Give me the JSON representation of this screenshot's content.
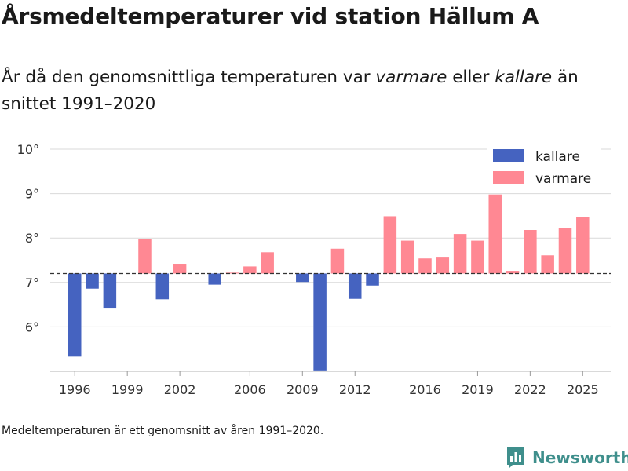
{
  "header": {
    "title": "Årsmedeltemperaturer vid station Hällum A",
    "subtitle_part1": "År då den genomsnittliga temperaturen var ",
    "subtitle_em1": "varmare",
    "subtitle_part2": " eller ",
    "subtitle_em2": "kallare",
    "subtitle_part3": " än snittet 1991–2020"
  },
  "footer": {
    "note": "Medeltemperaturen är ett genomsnitt av åren 1991–2020.",
    "brand": "Newsworthy"
  },
  "colors": {
    "kallare": "#4563c0",
    "varmare": "#ff8893",
    "grid": "#d9d9d9",
    "reference": "#333333",
    "brand": "#3f8f8c"
  },
  "chart_data": {
    "type": "bar",
    "title": "Årsmedeltemperaturer vid station Hällum A",
    "baseline": 7.2,
    "baseline_label": "snittet 1991–2020",
    "ylim": [
      5.0,
      10.3
    ],
    "yticks": [
      6,
      7,
      8,
      9,
      10
    ],
    "ytick_suffix": "°",
    "xlim": [
      1994.6,
      2026.6
    ],
    "xticks": [
      1996,
      1999,
      2002,
      2006,
      2009,
      2012,
      2016,
      2019,
      2022,
      2025
    ],
    "legend": {
      "position": "top-right",
      "entries": [
        {
          "key": "kallare",
          "label": "kallare"
        },
        {
          "key": "varmare",
          "label": "varmare"
        }
      ]
    },
    "series": [
      {
        "year": 1996,
        "value": 5.33
      },
      {
        "year": 1997,
        "value": 6.86
      },
      {
        "year": 1998,
        "value": 6.43
      },
      {
        "year": 2000,
        "value": 7.98
      },
      {
        "year": 2001,
        "value": 6.62
      },
      {
        "year": 2002,
        "value": 7.42
      },
      {
        "year": 2004,
        "value": 6.95
      },
      {
        "year": 2005,
        "value": 7.22
      },
      {
        "year": 2006,
        "value": 7.36
      },
      {
        "year": 2007,
        "value": 7.68
      },
      {
        "year": 2009,
        "value": 7.01
      },
      {
        "year": 2010,
        "value": 5.02
      },
      {
        "year": 2011,
        "value": 7.76
      },
      {
        "year": 2012,
        "value": 6.63
      },
      {
        "year": 2013,
        "value": 6.93
      },
      {
        "year": 2014,
        "value": 8.49
      },
      {
        "year": 2015,
        "value": 7.94
      },
      {
        "year": 2016,
        "value": 7.54
      },
      {
        "year": 2017,
        "value": 7.56
      },
      {
        "year": 2018,
        "value": 8.09
      },
      {
        "year": 2019,
        "value": 7.94
      },
      {
        "year": 2020,
        "value": 8.98
      },
      {
        "year": 2021,
        "value": 7.26
      },
      {
        "year": 2022,
        "value": 8.18
      },
      {
        "year": 2023,
        "value": 7.61
      },
      {
        "year": 2024,
        "value": 8.23
      },
      {
        "year": 2025,
        "value": 8.48
      }
    ]
  }
}
